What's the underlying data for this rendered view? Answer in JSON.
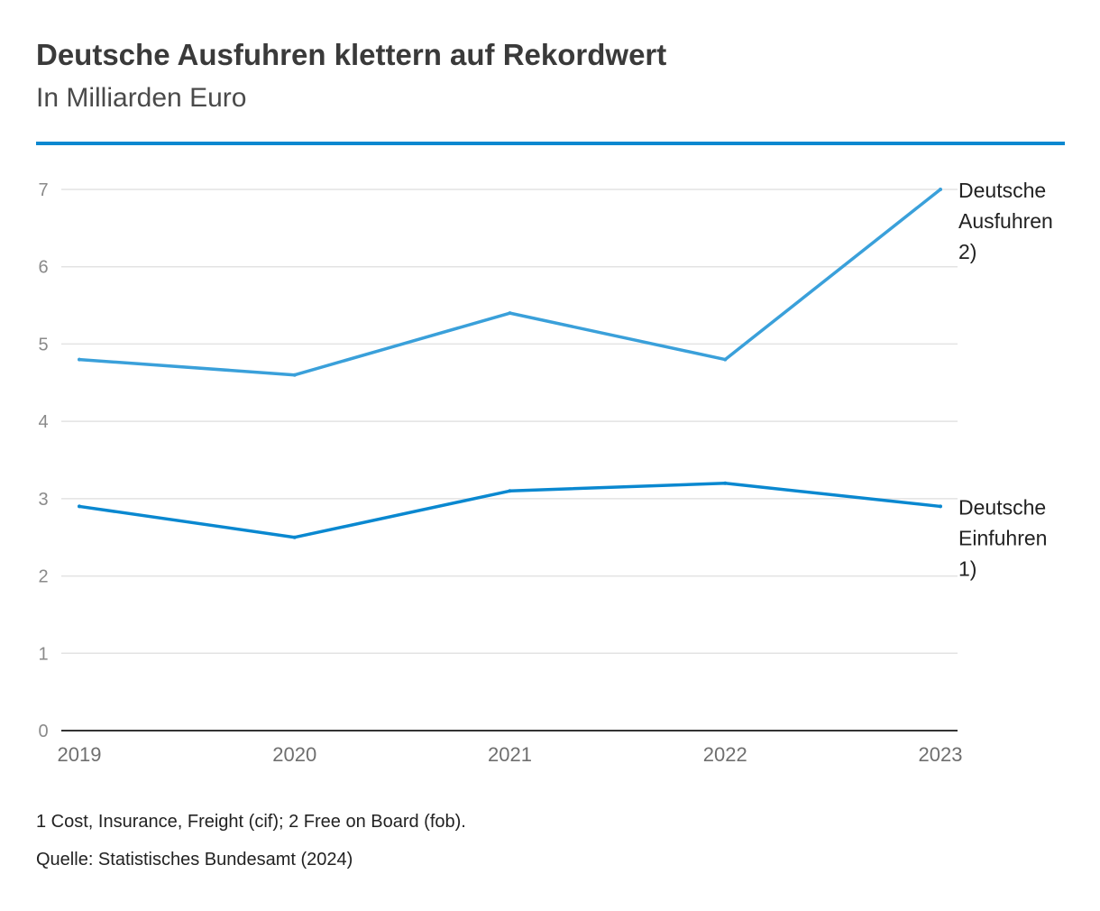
{
  "header": {
    "title": "Deutsche Ausfuhren klettern auf Rekordwert",
    "subtitle": "In Milliarden Euro"
  },
  "footer": {
    "footnote": "1 Cost, Insurance, Freight (cif); 2 Free on Board (fob).",
    "source": "Quelle: Statistisches Bundesamt (2024)"
  },
  "colors": {
    "accent_rule": "#0a88d0",
    "exports": "#3aa0da",
    "imports": "#0a88d0",
    "grid": "#e3e3e3",
    "axis": "#333333"
  },
  "chart_data": {
    "type": "line",
    "title": "Deutsche Ausfuhren klettern auf Rekordwert",
    "subtitle": "In Milliarden Euro",
    "x": [
      "2019",
      "2020",
      "2021",
      "2022",
      "2023"
    ],
    "yticks": [
      "0",
      "1",
      "2",
      "3",
      "4",
      "5",
      "6",
      "7"
    ],
    "ylim": [
      0,
      7
    ],
    "grid": true,
    "legend": "direct labels at line ends (right)",
    "series": [
      {
        "name": "Deutsche Ausfuhren 2)",
        "label_lines": [
          "Deutsche",
          "Ausfuhren",
          "2)"
        ],
        "values": [
          4.8,
          4.6,
          5.4,
          4.8,
          7.0
        ],
        "color": "#3aa0da"
      },
      {
        "name": "Deutsche Einfuhren 1)",
        "label_lines": [
          "Deutsche",
          "Einfuhren",
          "1)"
        ],
        "values": [
          2.9,
          2.5,
          3.1,
          3.2,
          2.9
        ],
        "color": "#0a88d0"
      }
    ]
  }
}
